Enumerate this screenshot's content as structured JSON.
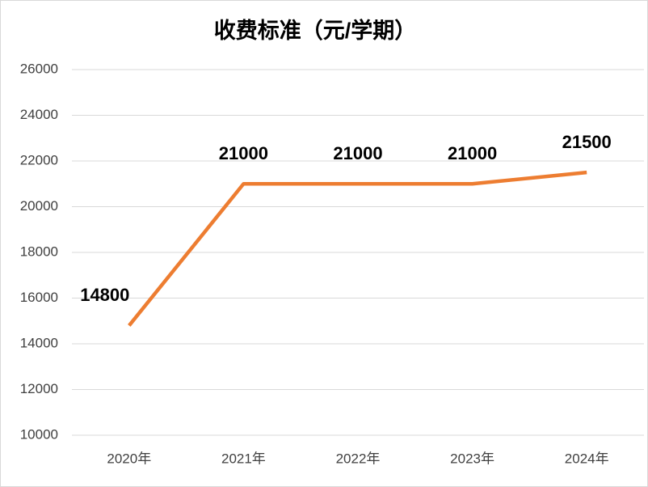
{
  "chart_data": {
    "type": "line",
    "title": "收费标准（元/学期）",
    "categories": [
      "2020年",
      "2021年",
      "2022年",
      "2023年",
      "2024年"
    ],
    "values": [
      14800,
      21000,
      21000,
      21000,
      21500
    ],
    "color": "#ed7d31",
    "ylim": [
      10000,
      26000
    ],
    "yticks": [
      10000,
      12000,
      14000,
      16000,
      18000,
      20000,
      22000,
      24000,
      26000
    ],
    "grid": true
  }
}
